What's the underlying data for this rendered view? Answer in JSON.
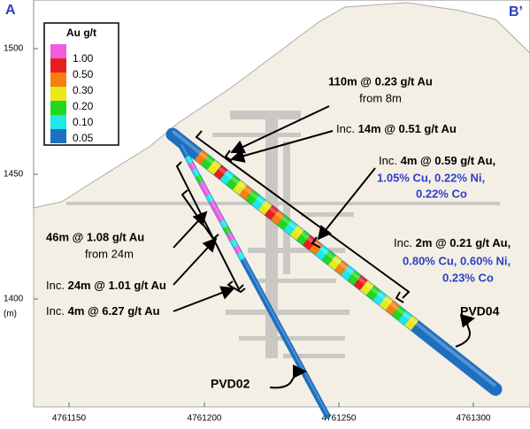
{
  "section": {
    "start": "A",
    "end": "B’"
  },
  "legend": {
    "title": "Au g/t",
    "labels": [
      "1.00",
      "0.50",
      "0.30",
      "0.20",
      "0.10",
      "0.05"
    ]
  },
  "x_axis": {
    "labels": [
      "4761150",
      "4761200",
      "4761250",
      "4761300"
    ]
  },
  "y_axis": {
    "labels": [
      "1500",
      "1450",
      "1400"
    ],
    "unit": "(m)"
  },
  "holes": [
    "PVD04",
    "PVD02"
  ],
  "annotations": [
    {
      "lines": [
        "110m @ 0.23 g/t Au",
        "from 8m"
      ]
    },
    {
      "prefix": "Inc.",
      "main": "14m @ 0.51 g/t Au"
    },
    {
      "prefix": "Inc.",
      "main": "4m @ 0.59 g/t Au,",
      "extra": [
        "1.05% Cu, 0.22% Ni,",
        "0.22% Co"
      ]
    },
    {
      "prefix": "Inc.",
      "main": "2m @ 0.21 g/t Au,",
      "extra": [
        "0.80% Cu, 0.60% Ni,",
        "0.23% Co"
      ]
    },
    {
      "lines": [
        "46m @ 1.08 g/t Au",
        "from 24m"
      ]
    },
    {
      "prefix": "Inc.",
      "main": "24m @ 1.01 g/t Au"
    },
    {
      "prefix": "Inc.",
      "main": "4m @ 6.27 g/t Au"
    }
  ]
}
